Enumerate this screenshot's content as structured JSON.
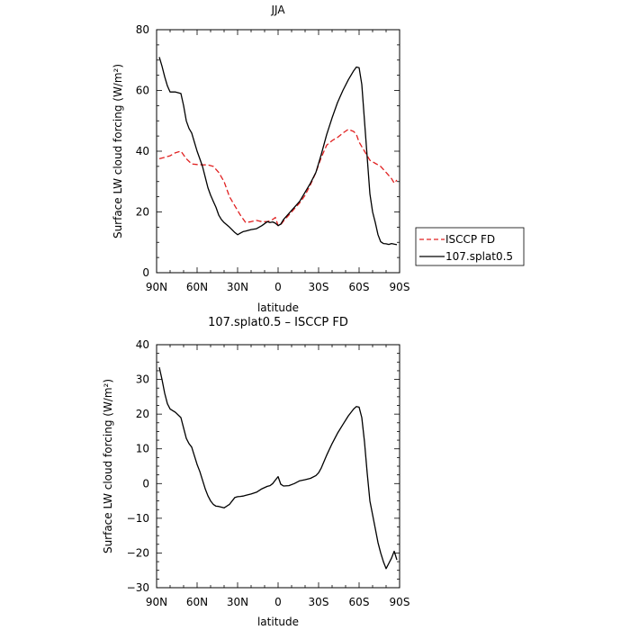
{
  "chart_data": [
    {
      "type": "line",
      "title": "JJA",
      "xlabel": "latitude",
      "ylabel": "Surface LW cloud forcing (W/m²)",
      "xlim": [
        -90,
        90
      ],
      "ylim": [
        0,
        80
      ],
      "x_ticks": [
        -90,
        -60,
        -30,
        0,
        30,
        60,
        90
      ],
      "x_tick_labels": [
        "90N",
        "60N",
        "30N",
        "0",
        "30S",
        "60S",
        "90S"
      ],
      "y_ticks": [
        0,
        20,
        40,
        60,
        80
      ],
      "y_tick_labels": [
        "0",
        "20",
        "40",
        "60",
        "80"
      ],
      "legend_position": "right",
      "series": [
        {
          "name": "ISCCP FD",
          "color": "#e02020",
          "dash": "dashed",
          "x": [
            -88,
            -84,
            -80,
            -76,
            -72,
            -68,
            -64,
            -60,
            -56,
            -52,
            -48,
            -44,
            -40,
            -36,
            -32,
            -28,
            -24,
            -20,
            -16,
            -12,
            -8,
            -4,
            -2,
            0,
            2,
            4,
            8,
            12,
            16,
            20,
            24,
            28,
            32,
            36,
            40,
            44,
            48,
            52,
            56,
            58,
            60,
            64,
            68,
            72,
            76,
            80,
            84,
            86,
            88
          ],
          "y": [
            37.5,
            38,
            38.5,
            39.5,
            40,
            37.5,
            35.8,
            35.6,
            35.5,
            35.5,
            35,
            33,
            30,
            25,
            22,
            19,
            16.5,
            16.8,
            17.2,
            16.8,
            16.8,
            17.5,
            18.2,
            15.5,
            15.8,
            17,
            19,
            21,
            23,
            25.5,
            29,
            33,
            38,
            42,
            43.5,
            44.5,
            46,
            47.2,
            46.5,
            45.5,
            43,
            40,
            37,
            36,
            35,
            33,
            31,
            29.5,
            30.5
          ]
        },
        {
          "name": "107.splat0.5",
          "color": "#000000",
          "dash": "solid",
          "x": [
            -88,
            -86,
            -84,
            -82,
            -80,
            -76,
            -72,
            -70,
            -68,
            -66,
            -64,
            -62,
            -60,
            -58,
            -56,
            -54,
            -52,
            -50,
            -48,
            -46,
            -44,
            -42,
            -40,
            -36,
            -32,
            -30,
            -28,
            -26,
            -24,
            -20,
            -16,
            -12,
            -8,
            -6,
            -4,
            -2,
            0,
            2,
            4,
            8,
            12,
            16,
            20,
            24,
            28,
            30,
            32,
            36,
            40,
            44,
            48,
            52,
            56,
            58,
            60,
            62,
            64,
            66,
            68,
            70,
            72,
            74,
            76,
            78,
            80,
            82,
            84,
            86,
            88
          ],
          "y": [
            71,
            68,
            64.5,
            61.5,
            59.5,
            59.5,
            59,
            55,
            50,
            47.5,
            46,
            43,
            40,
            37.5,
            35,
            31.5,
            28,
            25.5,
            23.5,
            21.5,
            19,
            17.5,
            16.5,
            15,
            13.2,
            12.5,
            13,
            13.5,
            13.7,
            14.2,
            14.5,
            15.5,
            16.8,
            16.5,
            16.7,
            16.3,
            15.5,
            16,
            17.5,
            19.5,
            21.5,
            23.5,
            26.5,
            29.5,
            33,
            36,
            39,
            45.5,
            51,
            56,
            60,
            63.5,
            66.5,
            67.7,
            67.5,
            62,
            50,
            38,
            26,
            20,
            16.5,
            12.5,
            10.2,
            9.6,
            9.5,
            9.3,
            9.6,
            9.4,
            9.2
          ]
        }
      ]
    },
    {
      "type": "line",
      "title": "107.splat0.5 – ISCCP FD",
      "xlabel": "latitude",
      "ylabel": "Surface LW cloud forcing (W/m²)",
      "xlim": [
        -90,
        90
      ],
      "ylim": [
        -30,
        40
      ],
      "x_ticks": [
        -90,
        -60,
        -30,
        0,
        30,
        60,
        90
      ],
      "x_tick_labels": [
        "90N",
        "60N",
        "30N",
        "0",
        "30S",
        "60S",
        "90S"
      ],
      "y_ticks": [
        -30,
        -20,
        -10,
        0,
        10,
        20,
        30,
        40
      ],
      "y_tick_labels": [
        "−30",
        "−20",
        "−10",
        "0",
        "10",
        "20",
        "30",
        "40"
      ],
      "series": [
        {
          "color": "#000000",
          "dash": "solid",
          "x": [
            -88,
            -86,
            -84,
            -82,
            -80,
            -76,
            -72,
            -70,
            -68,
            -66,
            -64,
            -62,
            -60,
            -58,
            -56,
            -54,
            -52,
            -50,
            -48,
            -46,
            -44,
            -42,
            -40,
            -36,
            -32,
            -30,
            -28,
            -26,
            -24,
            -20,
            -16,
            -12,
            -8,
            -6,
            -4,
            -2,
            0,
            2,
            4,
            8,
            12,
            16,
            20,
            24,
            28,
            30,
            32,
            36,
            40,
            44,
            48,
            52,
            56,
            58,
            60,
            62,
            64,
            66,
            68,
            70,
            72,
            74,
            76,
            78,
            80,
            82,
            84,
            86,
            88
          ],
          "y": [
            33.5,
            30,
            26,
            23,
            21.5,
            20.5,
            19,
            16,
            13,
            11.5,
            10.5,
            8,
            5.5,
            3.5,
            1,
            -1.5,
            -3.5,
            -5,
            -6,
            -6.5,
            -6.6,
            -6.8,
            -7,
            -6,
            -4,
            -3.8,
            -3.7,
            -3.6,
            -3.4,
            -3,
            -2.5,
            -1.5,
            -0.8,
            -0.6,
            0,
            1,
            2,
            -0.2,
            -0.7,
            -0.6,
            0,
            0.8,
            1.1,
            1.5,
            2.3,
            3.1,
            4.5,
            8.2,
            11.5,
            14.5,
            17,
            19.5,
            21.5,
            22.2,
            22,
            19,
            12,
            3,
            -5,
            -9,
            -13,
            -17,
            -20,
            -22.5,
            -24.5,
            -23,
            -21.5,
            -19.5,
            -22
          ]
        }
      ]
    }
  ]
}
